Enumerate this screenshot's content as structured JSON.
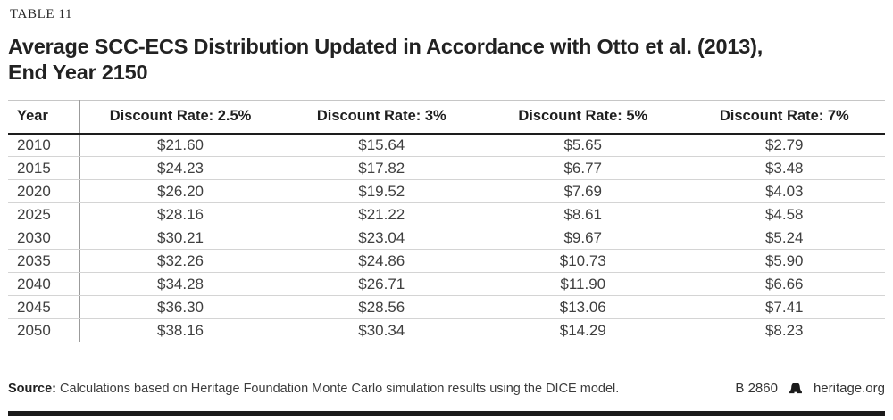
{
  "table_label": "TABLE 11",
  "title_line1": "Average SCC-ECS Distribution Updated in Accordance with Otto et al. (2013),",
  "title_line2": "End Year 2150",
  "table": {
    "columns": [
      "Year",
      "Discount Rate: 2.5%",
      "Discount Rate: 3%",
      "Discount Rate: 5%",
      "Discount Rate: 7%"
    ],
    "rows": [
      {
        "year": "2010",
        "values": [
          "$21.60",
          "$15.64",
          "$5.65",
          "$2.79"
        ]
      },
      {
        "year": "2015",
        "values": [
          "$24.23",
          "$17.82",
          "$6.77",
          "$3.48"
        ]
      },
      {
        "year": "2020",
        "values": [
          "$26.20",
          "$19.52",
          "$7.69",
          "$4.03"
        ]
      },
      {
        "year": "2025",
        "values": [
          "$28.16",
          "$21.22",
          "$8.61",
          "$4.58"
        ]
      },
      {
        "year": "2030",
        "values": [
          "$30.21",
          "$23.04",
          "$9.67",
          "$5.24"
        ]
      },
      {
        "year": "2035",
        "values": [
          "$32.26",
          "$24.86",
          "$10.73",
          "$5.90"
        ]
      },
      {
        "year": "2040",
        "values": [
          "$34.28",
          "$26.71",
          "$11.90",
          "$6.66"
        ]
      },
      {
        "year": "2045",
        "values": [
          "$36.30",
          "$28.56",
          "$13.06",
          "$7.41"
        ]
      },
      {
        "year": "2050",
        "values": [
          "$38.16",
          "$30.34",
          "$14.29",
          "$8.23"
        ]
      }
    ]
  },
  "footer": {
    "source_label": "Source:",
    "source_text": " Calculations based on Heritage Foundation Monte Carlo simulation results using the DICE model.",
    "report_id": "B 2860",
    "site": "heritage.org",
    "logo_icon": "liberty-bell"
  },
  "colors": {
    "near_black": "#1d1d1d",
    "body_text": "#3f3f3f",
    "row_rule": "#d4d4d4",
    "column_divider": "#9b9b9b",
    "top_rule": "#c6c6c6",
    "bottom_bar": "#1b1b1b"
  }
}
